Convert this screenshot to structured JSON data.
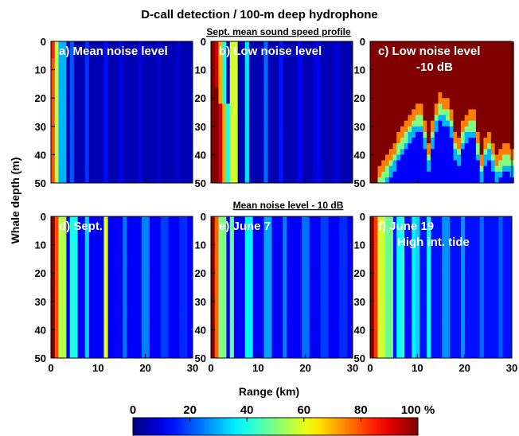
{
  "title": "D-call detection / 100-m deep hydrophone",
  "row_titles": [
    "Sept. mean sound speed profile",
    "Mean noise level - 10 dB"
  ],
  "ylabel": "Whale depth (m)",
  "xlabel": "Range (km)",
  "colorbar": {
    "tick_labels": [
      "0",
      "20",
      "40",
      "60",
      "80",
      "100 %"
    ],
    "range": [
      0,
      100
    ],
    "colormap": "jet"
  },
  "chart_data": [
    {
      "type": "heatmap",
      "panel": "a)",
      "label_lines": [
        "a) Mean noise level"
      ],
      "x_ticks": [
        "0",
        "10",
        "20",
        "30"
      ],
      "y_ticks": [
        "0",
        "10",
        "20",
        "30",
        "40",
        "50"
      ],
      "xlim": [
        0,
        30
      ],
      "ylim": [
        50,
        0
      ],
      "cell_km": 0.8,
      "cell_m": 2,
      "profile": {
        "bg": 5,
        "near": [
          85,
          55,
          30
        ],
        "bands": [
          [
            1.5,
            30,
            0.5
          ],
          [
            4.5,
            22,
            0.5
          ],
          [
            7.5,
            18,
            0.5
          ],
          [
            11.5,
            14,
            0.5
          ],
          [
            15,
            12,
            0.5
          ],
          [
            19,
            10,
            0.5
          ],
          [
            23,
            9,
            0.5
          ],
          [
            27,
            9,
            0.5
          ]
        ],
        "surf_km": 1,
        "surf_depth": 5
      }
    },
    {
      "type": "heatmap",
      "panel": "b)",
      "label_lines": [
        "b) Low noise level"
      ],
      "x_ticks": [
        "0",
        "10",
        "20",
        "30"
      ],
      "y_ticks": [
        "0",
        "10",
        "20",
        "30",
        "40",
        "50"
      ],
      "xlim": [
        0,
        30
      ],
      "ylim": [
        50,
        0
      ],
      "cell_km": 0.8,
      "cell_m": 2,
      "profile": {
        "bg": 5,
        "red_edge": [
          [
            0,
            1.2
          ],
          [
            15,
            1.8
          ],
          [
            30,
            2.2
          ],
          [
            50,
            2.6
          ]
        ],
        "bands": [
          [
            4.8,
            70,
            0.6
          ],
          [
            7.6,
            35,
            0.6
          ],
          [
            11.5,
            24,
            0.5
          ],
          [
            15,
            16,
            0.5
          ],
          [
            19,
            14,
            0.5
          ],
          [
            22.5,
            12,
            0.5
          ],
          [
            26.5,
            10,
            0.5
          ]
        ]
      }
    },
    {
      "type": "heatmap",
      "panel": "c)",
      "label_lines": [
        "c) Low noise level",
        "-10 dB"
      ],
      "x_ticks": [
        "0",
        "10",
        "20",
        "30"
      ],
      "y_ticks": [
        "0",
        "10",
        "20",
        "30",
        "40",
        "50"
      ],
      "xlim": [
        0,
        30
      ],
      "ylim": [
        50,
        0
      ],
      "cell_km": 0.8,
      "cell_m": 2,
      "profile": {
        "bg": 5,
        "red_profile": [
          [
            0,
            50
          ],
          [
            3,
            46
          ],
          [
            5,
            40
          ],
          [
            7,
            34
          ],
          [
            9,
            28
          ],
          [
            11,
            26
          ],
          [
            12.5,
            40
          ],
          [
            13.5,
            28
          ],
          [
            15,
            22
          ],
          [
            17,
            26
          ],
          [
            18.5,
            40
          ],
          [
            20,
            30
          ],
          [
            22,
            28
          ],
          [
            23.5,
            44
          ],
          [
            25,
            34
          ],
          [
            27,
            44
          ],
          [
            28.5,
            40
          ],
          [
            30,
            42
          ]
        ]
      }
    },
    {
      "type": "heatmap",
      "panel": "d)",
      "label_lines": [
        "d) Sept."
      ],
      "x_ticks": [
        "0",
        "10",
        "20",
        "30"
      ],
      "y_ticks": [
        "0",
        "10",
        "20",
        "30",
        "40",
        "50"
      ],
      "xlim": [
        0,
        30
      ],
      "ylim": [
        50,
        0
      ],
      "cell_km": 0.8,
      "cell_m": 2,
      "profile": {
        "bg": 12,
        "near": [
          100,
          80,
          55
        ],
        "bands": [
          [
            4.8,
            48,
            0.6
          ],
          [
            7.5,
            35,
            0.6
          ],
          [
            11.5,
            62,
            0.6
          ],
          [
            15.5,
            25,
            0.6
          ],
          [
            20,
            30,
            0.6
          ],
          [
            24,
            22,
            0.6
          ],
          [
            28,
            20,
            0.6
          ]
        ]
      }
    },
    {
      "type": "heatmap",
      "panel": "e)",
      "label_lines": [
        "e) June 7"
      ],
      "x_ticks": [
        "0",
        "10",
        "20",
        "30"
      ],
      "y_ticks": [
        "0",
        "10",
        "20",
        "30",
        "40",
        "50"
      ],
      "xlim": [
        0,
        30
      ],
      "ylim": [
        50,
        0
      ],
      "cell_km": 0.8,
      "cell_m": 2,
      "profile": {
        "bg": 12,
        "near": [
          100,
          78,
          50
        ],
        "bands": [
          [
            4.5,
            50,
            0.7
          ],
          [
            8,
            44,
            0.6
          ],
          [
            12,
            34,
            0.6
          ],
          [
            15.5,
            26,
            0.6
          ],
          [
            20,
            28,
            0.6
          ],
          [
            24,
            22,
            0.6
          ],
          [
            28,
            20,
            0.6
          ]
        ]
      }
    },
    {
      "type": "heatmap",
      "panel": "f)",
      "label_lines": [
        "f) June 19",
        "High int. tide"
      ],
      "x_ticks": [
        "0",
        "10",
        "20",
        "30"
      ],
      "y_ticks": [
        "0",
        "10",
        "20",
        "30",
        "40",
        "50"
      ],
      "xlim": [
        0,
        30
      ],
      "ylim": [
        50,
        0
      ],
      "cell_km": 0.8,
      "cell_m": 2,
      "profile": {
        "bg": 14,
        "near": [
          100,
          82,
          58
        ],
        "bands": [
          [
            4,
            58,
            0.6
          ],
          [
            6.5,
            48,
            0.6
          ],
          [
            9.5,
            42,
            0.6
          ],
          [
            12.5,
            40,
            0.6
          ],
          [
            16,
            32,
            0.6
          ],
          [
            19.5,
            28,
            0.6
          ],
          [
            23.5,
            24,
            0.6
          ],
          [
            27.5,
            22,
            0.6
          ]
        ]
      }
    }
  ]
}
